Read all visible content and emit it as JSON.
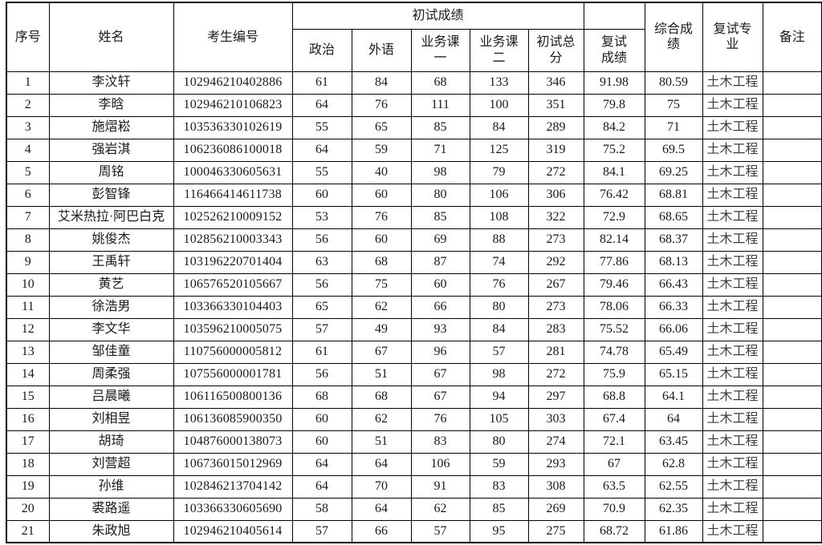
{
  "table": {
    "columns": {
      "seq": "序号",
      "name": "姓名",
      "candidate_id": "考生编号",
      "initial_exam_group": "初试成绩",
      "politics": "政治",
      "foreign_lang": "外语",
      "course1_lines": [
        "业务课",
        "一"
      ],
      "course2_lines": [
        "业务课",
        "二"
      ],
      "initial_total_lines": [
        "初试总",
        "分"
      ],
      "retest_score_lines": [
        "复试",
        "成绩"
      ],
      "composite_lines": [
        "综合成",
        "绩"
      ],
      "retest_major_lines": [
        "复试专",
        "业"
      ],
      "remark": "备注"
    },
    "colors": {
      "border": "#000000",
      "text": "#1a1a1a"
    },
    "rows": [
      [
        "1",
        "李汶轩",
        "102946210402886",
        "61",
        "84",
        "68",
        "133",
        "346",
        "91.98",
        "80.59",
        "土木工程",
        ""
      ],
      [
        "2",
        "李晗",
        "102946210106823",
        "64",
        "76",
        "111",
        "100",
        "351",
        "79.8",
        "75",
        "土木工程",
        ""
      ],
      [
        "3",
        "施熠崧",
        "103536330102619",
        "55",
        "65",
        "85",
        "84",
        "289",
        "84.2",
        "71",
        "土木工程",
        ""
      ],
      [
        "4",
        "强岩淇",
        "106236086100018",
        "64",
        "59",
        "71",
        "125",
        "319",
        "75.2",
        "69.5",
        "土木工程",
        ""
      ],
      [
        "5",
        "周铭",
        "100046330605631",
        "55",
        "40",
        "98",
        "79",
        "272",
        "84.1",
        "69.25",
        "土木工程",
        ""
      ],
      [
        "6",
        "彭智锋",
        "116466414611738",
        "60",
        "60",
        "80",
        "106",
        "306",
        "76.42",
        "68.81",
        "土木工程",
        ""
      ],
      [
        "7",
        "艾米热拉·阿巴白克",
        "102526210009152",
        "53",
        "76",
        "85",
        "108",
        "322",
        "72.9",
        "68.65",
        "土木工程",
        ""
      ],
      [
        "8",
        "姚俊杰",
        "102856210003343",
        "56",
        "60",
        "69",
        "88",
        "273",
        "82.14",
        "68.37",
        "土木工程",
        ""
      ],
      [
        "9",
        "王禹轩",
        "103196220701404",
        "63",
        "68",
        "87",
        "74",
        "292",
        "77.86",
        "68.13",
        "土木工程",
        ""
      ],
      [
        "10",
        "黄艺",
        "106576520105667",
        "56",
        "75",
        "60",
        "76",
        "267",
        "79.46",
        "66.43",
        "土木工程",
        ""
      ],
      [
        "11",
        "徐浩男",
        "103366330104403",
        "65",
        "62",
        "66",
        "80",
        "273",
        "78.06",
        "66.33",
        "土木工程",
        ""
      ],
      [
        "12",
        "李文华",
        "103596210005075",
        "57",
        "49",
        "93",
        "84",
        "283",
        "75.52",
        "66.06",
        "土木工程",
        ""
      ],
      [
        "13",
        "邹佳童",
        "110756000005812",
        "61",
        "67",
        "96",
        "57",
        "281",
        "74.78",
        "65.49",
        "土木工程",
        ""
      ],
      [
        "14",
        "周柔强",
        "107556000001781",
        "56",
        "51",
        "67",
        "98",
        "272",
        "75.9",
        "65.15",
        "土木工程",
        ""
      ],
      [
        "15",
        "吕晨曦",
        "106116500800136",
        "68",
        "68",
        "67",
        "94",
        "297",
        "68.8",
        "64.1",
        "土木工程",
        ""
      ],
      [
        "16",
        "刘相昱",
        "106136085900350",
        "60",
        "62",
        "76",
        "105",
        "303",
        "67.4",
        "64",
        "土木工程",
        ""
      ],
      [
        "17",
        "胡琦",
        "104876000138073",
        "60",
        "51",
        "83",
        "80",
        "274",
        "72.1",
        "63.45",
        "土木工程",
        ""
      ],
      [
        "18",
        "刘营超",
        "106736015012969",
        "64",
        "64",
        "106",
        "59",
        "293",
        "67",
        "62.8",
        "土木工程",
        ""
      ],
      [
        "19",
        "孙维",
        "102846213704142",
        "64",
        "70",
        "91",
        "83",
        "308",
        "63.5",
        "62.55",
        "土木工程",
        ""
      ],
      [
        "20",
        "裘路遥",
        "103366330605690",
        "58",
        "64",
        "62",
        "85",
        "269",
        "70.9",
        "62.35",
        "土木工程",
        ""
      ],
      [
        "21",
        "朱政旭",
        "102946210405614",
        "57",
        "66",
        "57",
        "95",
        "275",
        "68.72",
        "61.86",
        "土木工程",
        ""
      ]
    ]
  }
}
